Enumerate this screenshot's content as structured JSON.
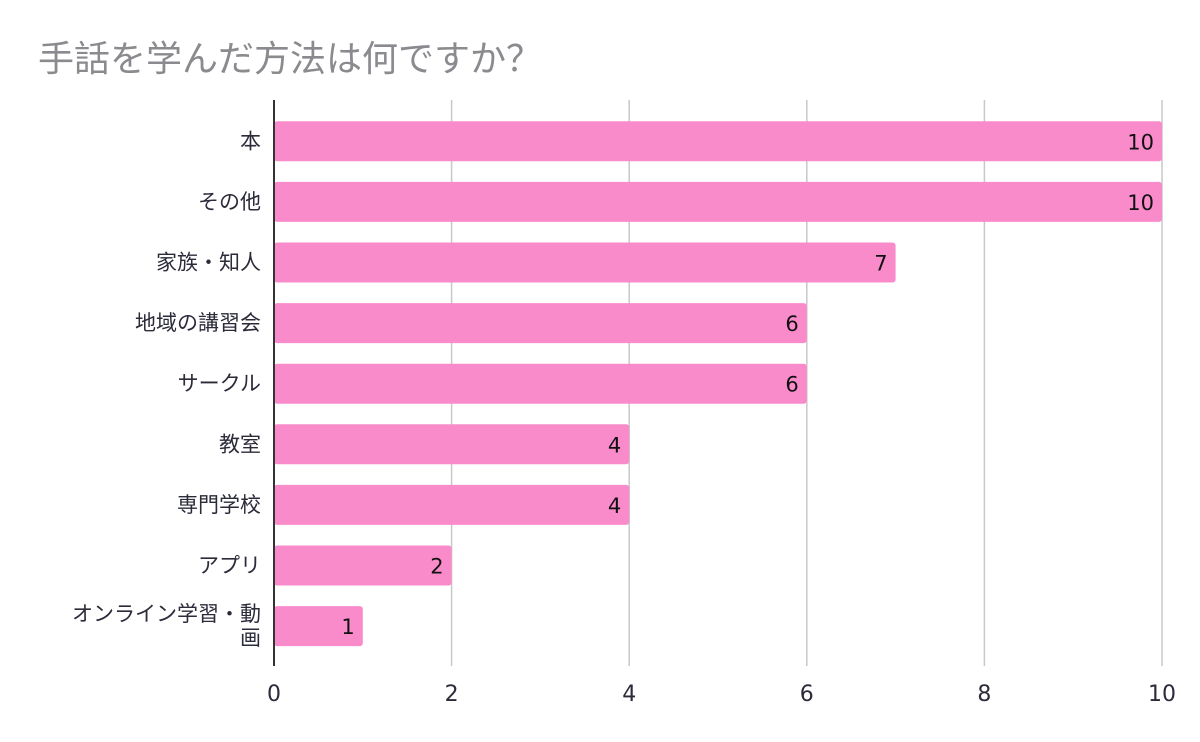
{
  "chart_data": {
    "type": "bar",
    "orientation": "horizontal",
    "title": "手話を学んだ方法は何ですか？",
    "categories": [
      "本",
      "その他",
      "家族・知人",
      "地域の講習会",
      "サークル",
      "教室",
      "専門学校",
      "アプリ",
      "オンライン学習・動画"
    ],
    "category_display": [
      [
        "本"
      ],
      [
        "その他"
      ],
      [
        "家族・知人"
      ],
      [
        "地域の講習会"
      ],
      [
        "サークル"
      ],
      [
        "教室"
      ],
      [
        "専門学校"
      ],
      [
        "アプリ"
      ],
      [
        "オンライン学習・動",
        "画"
      ]
    ],
    "values": [
      10,
      10,
      7,
      6,
      6,
      4,
      4,
      2,
      1
    ],
    "data_labels": [
      "10",
      "10",
      "7",
      "6",
      "6",
      "4",
      "4",
      "2",
      "1"
    ],
    "xlim": [
      0,
      10
    ],
    "x_ticks": [
      0,
      2,
      4,
      6,
      8,
      10
    ],
    "x_tick_labels": [
      "0",
      "2",
      "4",
      "6",
      "8",
      "10"
    ],
    "xlabel": "",
    "ylabel": "",
    "grid": true,
    "legend": "none",
    "colors": {
      "bar": "#f98bcb",
      "grid": "#c8c8c8",
      "axis": "#333333"
    }
  }
}
